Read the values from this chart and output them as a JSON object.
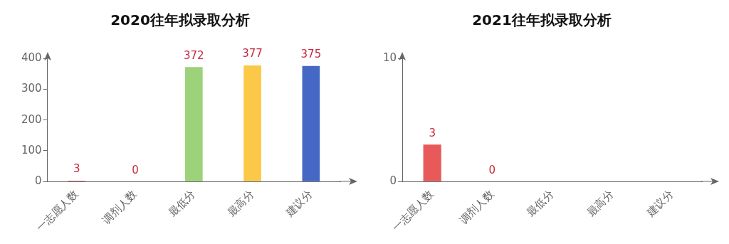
{
  "chart_data": [
    {
      "type": "bar",
      "title": "2020往年拟录取分析",
      "categories": [
        "一志愿人数",
        "调剂人数",
        "最低分",
        "最高分",
        "建议分"
      ],
      "values": [
        3,
        0,
        372,
        377,
        375
      ],
      "colors": [
        "#e85a5a",
        "#e85a5a",
        "#9bd27a",
        "#fcc848",
        "#4468c4"
      ],
      "ylim": [
        0,
        400
      ],
      "yticks": [
        0,
        100,
        200,
        300,
        400
      ],
      "data_labels": true
    },
    {
      "type": "bar",
      "title": "2021往年拟录取分析",
      "categories": [
        "一志愿人数",
        "调剂人数",
        "最低分",
        "最高分",
        "建议分"
      ],
      "values": [
        3,
        0,
        null,
        null,
        null
      ],
      "colors": [
        "#e85a5a",
        "#e85a5a",
        "#9bd27a",
        "#fcc848",
        "#4468c4"
      ],
      "ylim": [
        0,
        10
      ],
      "yticks": [
        0,
        10
      ],
      "data_labels": true
    }
  ]
}
